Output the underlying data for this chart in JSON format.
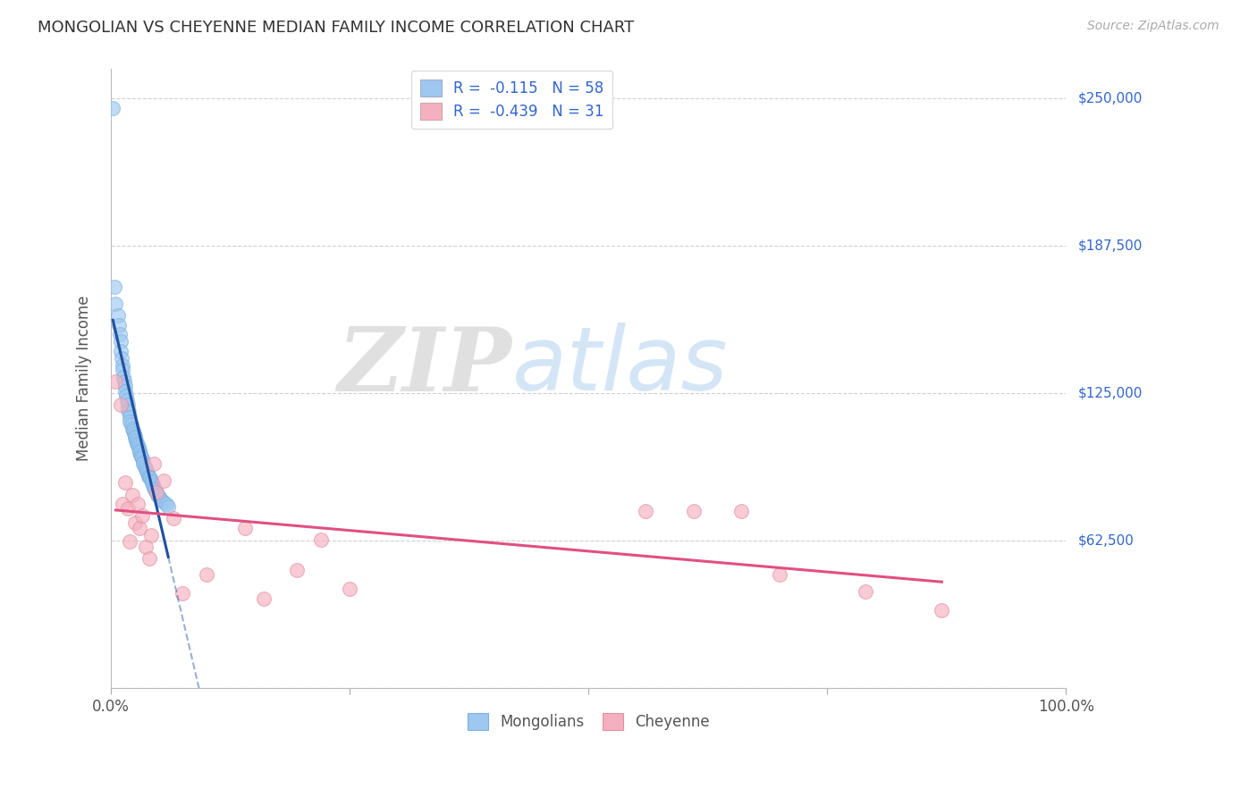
{
  "title": "MONGOLIAN VS CHEYENNE MEDIAN FAMILY INCOME CORRELATION CHART",
  "source": "Source: ZipAtlas.com",
  "ylabel": "Median Family Income",
  "xlim": [
    0,
    1.0
  ],
  "ylim": [
    0,
    262500
  ],
  "yticks": [
    0,
    62500,
    125000,
    187500,
    250000
  ],
  "ytick_labels": [
    "",
    "$62,500",
    "$125,000",
    "$187,500",
    "$250,000"
  ],
  "xtick_positions": [
    0.0,
    0.25,
    0.5,
    0.75,
    1.0
  ],
  "xtick_labels": [
    "0.0%",
    "",
    "",
    "",
    "100.0%"
  ],
  "grid_color": "#d0d0d0",
  "background_color": "#ffffff",
  "mongolian_color": "#9ec8f0",
  "mongolian_edge_color": "#7ab0e0",
  "mongolian_line_color": "#2050a0",
  "cheyenne_color": "#f5b0c0",
  "cheyenne_edge_color": "#e090a0",
  "cheyenne_line_color": "#e05080",
  "legend_r1": "-0.115",
  "legend_n1": "58",
  "legend_r2": "-0.439",
  "legend_n2": "31",
  "watermark_zip": "ZIP",
  "watermark_atlas": "atlas",
  "mongolian_x": [
    0.002,
    0.004,
    0.005,
    0.007,
    0.008,
    0.009,
    0.01,
    0.01,
    0.011,
    0.012,
    0.012,
    0.013,
    0.014,
    0.015,
    0.015,
    0.016,
    0.017,
    0.018,
    0.018,
    0.019,
    0.02,
    0.02,
    0.021,
    0.022,
    0.023,
    0.024,
    0.025,
    0.025,
    0.026,
    0.027,
    0.028,
    0.029,
    0.03,
    0.03,
    0.031,
    0.032,
    0.033,
    0.034,
    0.034,
    0.035,
    0.036,
    0.037,
    0.038,
    0.039,
    0.04,
    0.041,
    0.042,
    0.043,
    0.044,
    0.045,
    0.046,
    0.048,
    0.049,
    0.05,
    0.052,
    0.055,
    0.058,
    0.06
  ],
  "mongolian_y": [
    246000,
    170000,
    163000,
    158000,
    154000,
    150000,
    147000,
    143000,
    140000,
    137000,
    135000,
    132000,
    130000,
    128000,
    126000,
    124000,
    122000,
    120000,
    118000,
    117000,
    115000,
    113000,
    112000,
    110000,
    109000,
    108000,
    107000,
    106000,
    105000,
    104000,
    103000,
    102000,
    101000,
    100000,
    99000,
    98000,
    97500,
    96000,
    95000,
    94000,
    93000,
    92000,
    91000,
    90000,
    89500,
    89000,
    88000,
    87000,
    86000,
    85000,
    84000,
    83000,
    82000,
    81000,
    80000,
    79000,
    78000,
    77000
  ],
  "cheyenne_x": [
    0.005,
    0.01,
    0.012,
    0.015,
    0.018,
    0.02,
    0.022,
    0.025,
    0.028,
    0.03,
    0.033,
    0.036,
    0.04,
    0.042,
    0.045,
    0.048,
    0.055,
    0.065,
    0.075,
    0.1,
    0.14,
    0.16,
    0.195,
    0.22,
    0.25,
    0.56,
    0.61,
    0.66,
    0.7,
    0.79,
    0.87
  ],
  "cheyenne_y": [
    130000,
    120000,
    78000,
    87000,
    76000,
    62000,
    82000,
    70000,
    78000,
    68000,
    73000,
    60000,
    55000,
    65000,
    95000,
    83000,
    88000,
    72000,
    40000,
    48000,
    68000,
    38000,
    50000,
    63000,
    42000,
    75000,
    75000,
    75000,
    48000,
    41000,
    33000
  ]
}
